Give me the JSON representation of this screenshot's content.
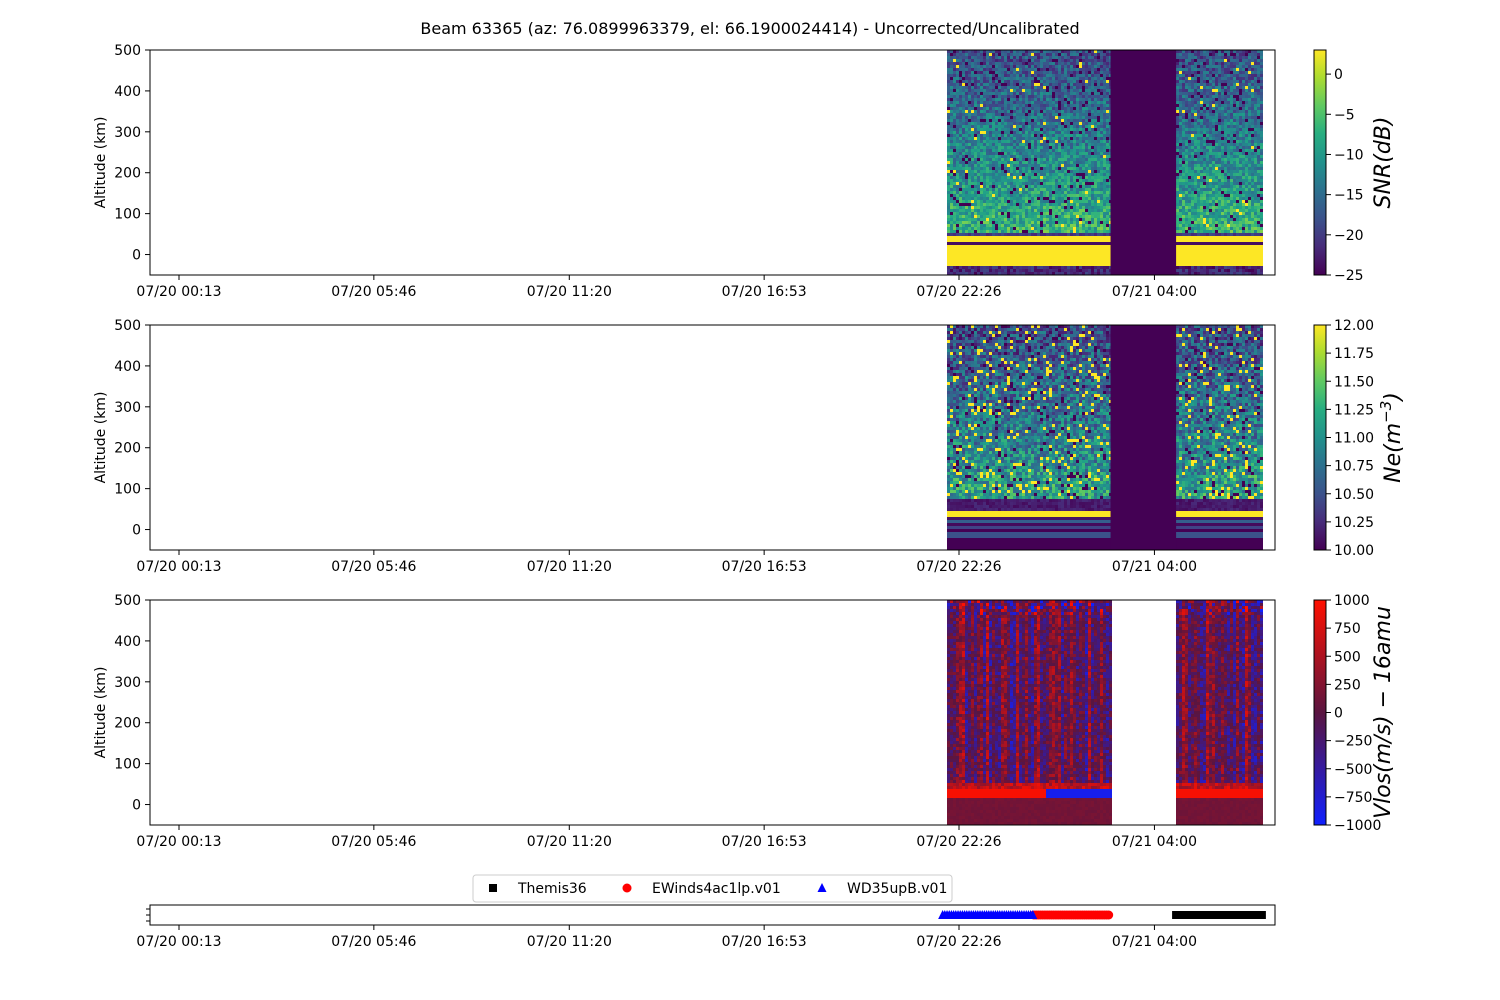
{
  "title": "Beam 63365 (az: 76.0899963379, el: 66.1900024414) - Uncorrected/Uncalibrated",
  "chart_data": [
    {
      "type": "heatmap",
      "id": "snr",
      "ylabel": "Altitude (km)",
      "ylim": [
        -50,
        500
      ],
      "yticks": [
        0,
        100,
        200,
        300,
        400,
        500
      ],
      "xticks": [
        "07/20 00:13",
        "07/20 05:46",
        "07/20 11:20",
        "07/20 16:53",
        "07/20 22:26",
        "07/21 04:00"
      ],
      "data_segments": [
        [
          "07/20 22:06",
          "07/21 02:45"
        ],
        [
          "07/21 04:37",
          "07/21 07:04"
        ]
      ],
      "gap_fill_segment": [
        "07/21 02:45",
        "07/21 04:37"
      ],
      "colorbar": {
        "label": "SNR(dB)",
        "min": -25,
        "max": 3,
        "ticks": [
          0,
          -5,
          -10,
          -15,
          -20,
          -25
        ],
        "tick_labels": [
          "0",
          "−5",
          "−10",
          "−15",
          "−20",
          "−25"
        ],
        "colormap": "viridis"
      }
    },
    {
      "type": "heatmap",
      "id": "ne",
      "ylabel": "Altitude (km)",
      "ylim": [
        -50,
        500
      ],
      "yticks": [
        0,
        100,
        200,
        300,
        400,
        500
      ],
      "xticks": [
        "07/20 00:13",
        "07/20 05:46",
        "07/20 11:20",
        "07/20 16:53",
        "07/20 22:26",
        "07/21 04:00"
      ],
      "data_segments": [
        [
          "07/20 22:06",
          "07/21 02:45"
        ],
        [
          "07/21 04:37",
          "07/21 07:04"
        ]
      ],
      "gap_fill_segment": [
        "07/21 02:45",
        "07/21 04:37"
      ],
      "colorbar": {
        "label_base": "Ne(m",
        "label_exp": "−3",
        "label_close": ")",
        "min": 10.0,
        "max": 12.0,
        "ticks": [
          12.0,
          11.75,
          11.5,
          11.25,
          11.0,
          10.75,
          10.5,
          10.25,
          10.0
        ],
        "tick_labels": [
          "12.00",
          "11.75",
          "11.50",
          "11.25",
          "11.00",
          "10.75",
          "10.50",
          "10.25",
          "10.00"
        ],
        "colormap": "viridis"
      }
    },
    {
      "type": "heatmap",
      "id": "vlos",
      "ylabel": "Altitude (km)",
      "ylim": [
        -50,
        500
      ],
      "yticks": [
        0,
        100,
        200,
        300,
        400,
        500
      ],
      "xticks": [
        "07/20 00:13",
        "07/20 05:46",
        "07/20 11:20",
        "07/20 16:53",
        "07/20 22:26",
        "07/21 04:00"
      ],
      "data_segments": [
        [
          "07/20 22:06",
          "07/21 02:45"
        ],
        [
          "07/21 04:37",
          "07/21 07:04"
        ]
      ],
      "colorbar": {
        "label": "Vlos(m/s) − 16amu",
        "min": -1000,
        "max": 1000,
        "ticks": [
          1000,
          750,
          500,
          250,
          0,
          -250,
          -500,
          -750,
          -1000
        ],
        "tick_labels": [
          "1000",
          "750",
          "500",
          "250",
          "0",
          "−250",
          "−500",
          "−750",
          "−1000"
        ],
        "colormap": "bwr"
      }
    },
    {
      "type": "scatter",
      "id": "modes",
      "xticks": [
        "07/20 00:13",
        "07/20 05:46",
        "07/20 11:20",
        "07/20 16:53",
        "07/20 22:26",
        "07/21 04:00"
      ],
      "legend_placement": "top-center",
      "series": [
        {
          "name": "Themis36",
          "marker": "square",
          "color": "#000000",
          "x_range": [
            "07/21 04:37",
            "07/21 07:04"
          ]
        },
        {
          "name": "EWinds4ac1lp.v01",
          "marker": "circle",
          "color": "#ff0000",
          "x_range": [
            "07/21 00:34",
            "07/21 02:45"
          ]
        },
        {
          "name": "WD35upB.v01",
          "marker": "triangle",
          "color": "#0000ff",
          "x_range": [
            "07/20 21:58",
            "07/21 00:34"
          ]
        }
      ]
    }
  ]
}
